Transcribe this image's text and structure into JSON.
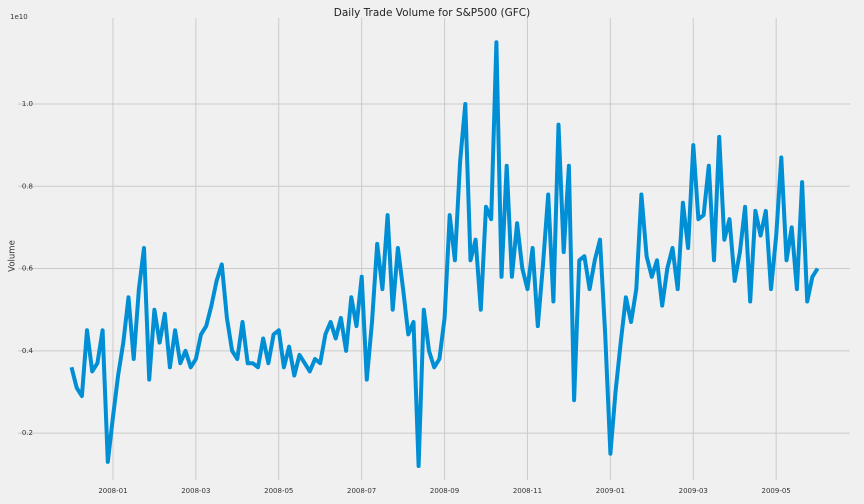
{
  "chart_data": {
    "type": "line",
    "title": "Daily Trade Volume for S&P500 (GFC)",
    "y_label": "Volume",
    "y_offset_label": "1e10",
    "x": [
      null,
      "2008-01",
      null,
      "2008-03",
      null,
      "2008-05",
      null,
      "2008-07",
      null,
      "2008-09",
      null,
      "2008-11",
      null,
      "2009-01",
      null,
      "2009-03",
      null,
      "2009-05",
      null
    ],
    "series": [
      {
        "name": "Volume",
        "color": "#008fd5",
        "values": [
          [
            0.36,
            0.31,
            0.29,
            0.45,
            0.35,
            0.37,
            0.45,
            0.13
          ],
          [
            0.24,
            0.34,
            0.42,
            0.53,
            0.38,
            0.55,
            0.65,
            0.33
          ],
          [
            0.5,
            0.42,
            0.49,
            0.36,
            0.45,
            0.37,
            0.4,
            0.36
          ],
          [
            0.38,
            0.44,
            0.46,
            0.51,
            0.57,
            0.61,
            0.48,
            0.4
          ],
          [
            0.38,
            0.47,
            0.37,
            0.37,
            0.36,
            0.43,
            0.37,
            0.44
          ],
          [
            0.45,
            0.36,
            0.41,
            0.34,
            0.39,
            0.37,
            0.35,
            0.38
          ],
          [
            0.37,
            0.44,
            0.47,
            0.43,
            0.48,
            0.4,
            0.53,
            0.46
          ],
          [
            0.58,
            0.33,
            0.47,
            0.66,
            0.55,
            0.73,
            0.5,
            0.65
          ],
          [
            0.55,
            0.44,
            0.47,
            0.12,
            0.5,
            0.4,
            0.36,
            0.38
          ],
          [
            0.48,
            0.73,
            0.62,
            0.86,
            1.0,
            0.62,
            0.67,
            0.5
          ],
          [
            0.75,
            0.72,
            1.15,
            0.58,
            0.85,
            0.58,
            0.71,
            0.6
          ],
          [
            0.55,
            0.65,
            0.46,
            0.61,
            0.78,
            0.52,
            0.95,
            0.64
          ],
          [
            0.85,
            0.28,
            0.62,
            0.63,
            0.55,
            0.62,
            0.67,
            0.44
          ],
          [
            0.15,
            0.3,
            0.42,
            0.53,
            0.47,
            0.55,
            0.78,
            0.63
          ],
          [
            0.58,
            0.62,
            0.51,
            0.6,
            0.65,
            0.55,
            0.76,
            0.65
          ],
          [
            0.9,
            0.72,
            0.73,
            0.85,
            0.62,
            0.92,
            0.67,
            0.72
          ],
          [
            0.57,
            0.64,
            0.75,
            0.52,
            0.74,
            0.68,
            0.74,
            0.55
          ],
          [
            0.68,
            0.87,
            0.62,
            0.7,
            0.55,
            0.81,
            0.52,
            0.58
          ],
          [
            0.6
          ]
        ]
      }
    ],
    "ylim": [
      0.086,
      1.209
    ],
    "yticks": [
      0.2,
      0.4,
      0.6,
      0.8,
      {
        "value": 1,
        "label": "1.0"
      }
    ],
    "grid": true
  }
}
